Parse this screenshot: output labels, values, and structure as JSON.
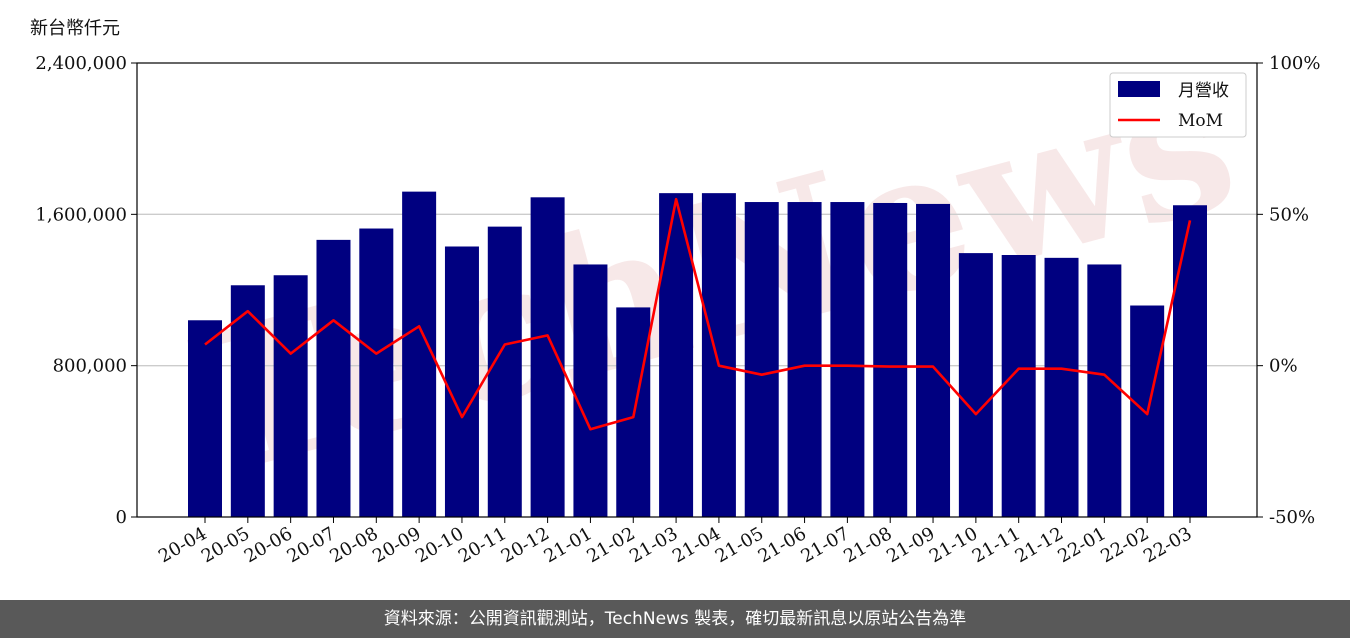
{
  "unit_label": "新台幣仟元",
  "footer_text": "資料來源：公開資訊觀測站，TechNews 製表，確切最新訊息以原站公告為準",
  "watermark_text": "TechNews",
  "colors": {
    "bar": "#000080",
    "line": "#ff0000",
    "footer_bg": "#595959",
    "grid": "#cccccc"
  },
  "chart_data": {
    "type": "bar+line",
    "categories": [
      "20-04",
      "20-05",
      "20-06",
      "20-07",
      "20-08",
      "20-09",
      "20-10",
      "20-11",
      "20-12",
      "21-01",
      "21-02",
      "21-03",
      "21-04",
      "21-05",
      "21-06",
      "21-07",
      "21-08",
      "21-09",
      "21-10",
      "21-11",
      "21-12",
      "22-01",
      "22-02",
      "22-03"
    ],
    "series": [
      {
        "name": "月營收",
        "axis": "left",
        "type": "bar",
        "values": [
          1040000,
          1225000,
          1278000,
          1465000,
          1525000,
          1720000,
          1430000,
          1535000,
          1690000,
          1335000,
          1108000,
          1712000,
          1712000,
          1665000,
          1665000,
          1665000,
          1660000,
          1655000,
          1395000,
          1385000,
          1370000,
          1335000,
          1118000,
          1648000
        ]
      },
      {
        "name": "MoM",
        "axis": "right",
        "type": "line",
        "values": [
          7,
          18,
          4,
          15,
          4,
          13,
          -17,
          7,
          10,
          -21,
          -17,
          55,
          0,
          -3,
          0,
          0,
          -0.3,
          -0.3,
          -16,
          -1,
          -1,
          -3,
          -16,
          48
        ]
      }
    ],
    "left_axis": {
      "min": 0,
      "max": 2400000,
      "ticks": [
        "0",
        "800,000",
        "1,600,000",
        "2,400,000"
      ]
    },
    "right_axis": {
      "min": -50,
      "max": 100,
      "ticks": [
        "-50%",
        "0%",
        "50%",
        "100%"
      ]
    },
    "grid": true,
    "legend_position": "top-right"
  }
}
